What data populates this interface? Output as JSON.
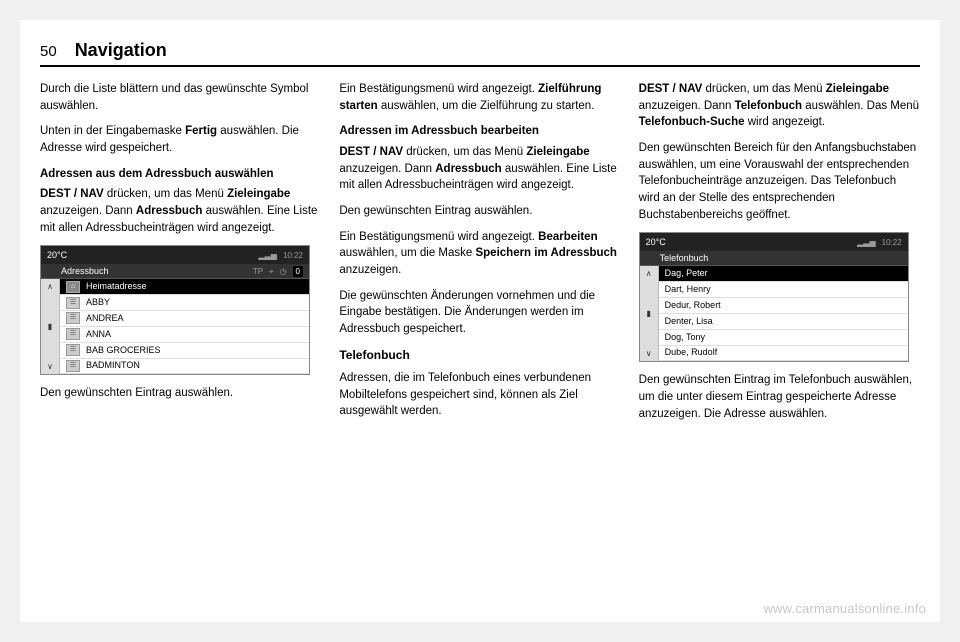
{
  "page": {
    "number": "50",
    "title": "Navigation"
  },
  "col1": {
    "p1": "Durch die Liste blättern und das gewünschte Symbol auswählen.",
    "p2a": "Unten in der Eingabemaske ",
    "p2b": "Fertig",
    "p2c": " auswählen. Die Adresse wird gespeichert.",
    "h4": "Adressen aus dem Adressbuch auswählen",
    "p3a": "DEST / NAV",
    "p3b": " drücken, um das Menü ",
    "p3c": "Zieleingabe",
    "p3d": " anzuzeigen. Dann ",
    "p3e": "Adressbuch",
    "p3f": " auswählen. Eine Liste mit allen Adressbucheinträgen wird angezeigt.",
    "p4": "Den gewünschten Eintrag auswählen."
  },
  "screenshot1": {
    "temp": "20°C",
    "time": "10:22",
    "title": "Adressbuch",
    "scroll_up": "∧",
    "scroll_down": "∨",
    "zero": "0",
    "items": [
      {
        "label": "Heimatadresse",
        "selected": true
      },
      {
        "label": "ABBY",
        "selected": false
      },
      {
        "label": "ANDREA",
        "selected": false
      },
      {
        "label": "ANNA",
        "selected": false
      },
      {
        "label": "BAB GROCERIES",
        "selected": false
      },
      {
        "label": "BADMINTON",
        "selected": false
      }
    ]
  },
  "col2": {
    "p1a": "Ein Bestätigungsmenü wird angezeigt. ",
    "p1b": "Zielführung starten",
    "p1c": " auswählen, um die Zielführung zu starten.",
    "h4": "Adressen im Adressbuch bearbeiten",
    "p2a": "DEST / NAV",
    "p2b": " drücken, um das Menü ",
    "p2c": "Zieleingabe",
    "p2d": " anzuzeigen. Dann ",
    "p2e": "Adressbuch",
    "p2f": " auswählen. Eine Liste mit allen Adressbucheinträgen wird angezeigt.",
    "p3": "Den gewünschten Eintrag auswählen.",
    "p4a": "Ein Bestätigungsmenü wird angezeigt. ",
    "p4b": "Bearbeiten",
    "p4c": " auswählen, um die Maske ",
    "p4d": "Speichern im Adressbuch",
    "p4e": " anzuzeigen.",
    "p5": "Die gewünschten Änderungen vornehmen und die Eingabe bestätigen. Die Änderungen werden im Adressbuch gespeichert.",
    "h3": "Telefonbuch",
    "p6": "Adressen, die im Telefonbuch eines verbundenen Mobiltelefons gespeichert sind, können als Ziel ausgewählt werden."
  },
  "col3": {
    "p1a": "DEST / NAV",
    "p1b": " drücken, um das Menü ",
    "p1c": "Zieleingabe",
    "p1d": " anzuzeigen. Dann ",
    "p1e": "Telefonbuch",
    "p1f": " auswählen. Das Menü ",
    "p1g": "Telefonbuch-Suche",
    "p1h": " wird angezeigt.",
    "p2": "Den gewünschten Bereich für den Anfangsbuchstaben auswählen, um eine Vorauswahl der entsprechenden Telefonbucheinträge anzuzeigen. Das Telefonbuch wird an der Stelle des entsprechenden Buchstabenbereichs geöffnet.",
    "p3": "Den gewünschten Eintrag im Telefonbuch auswählen, um die unter diesem Eintrag gespeicherte Adresse anzuzeigen. Die Adresse auswählen."
  },
  "screenshot2": {
    "temp": "20°C",
    "time": "10:22",
    "title": "Telefonbuch",
    "scroll_up": "∧",
    "scroll_down": "∨",
    "items": [
      {
        "label": "Dag, Peter",
        "selected": true
      },
      {
        "label": "Dart, Henry",
        "selected": false
      },
      {
        "label": "Dedur, Robert",
        "selected": false
      },
      {
        "label": "Denter, Lisa",
        "selected": false
      },
      {
        "label": "Dog, Tony",
        "selected": false
      },
      {
        "label": "Dube, Rudolf",
        "selected": false
      }
    ]
  },
  "watermark": "www.carmanualsonline.info"
}
